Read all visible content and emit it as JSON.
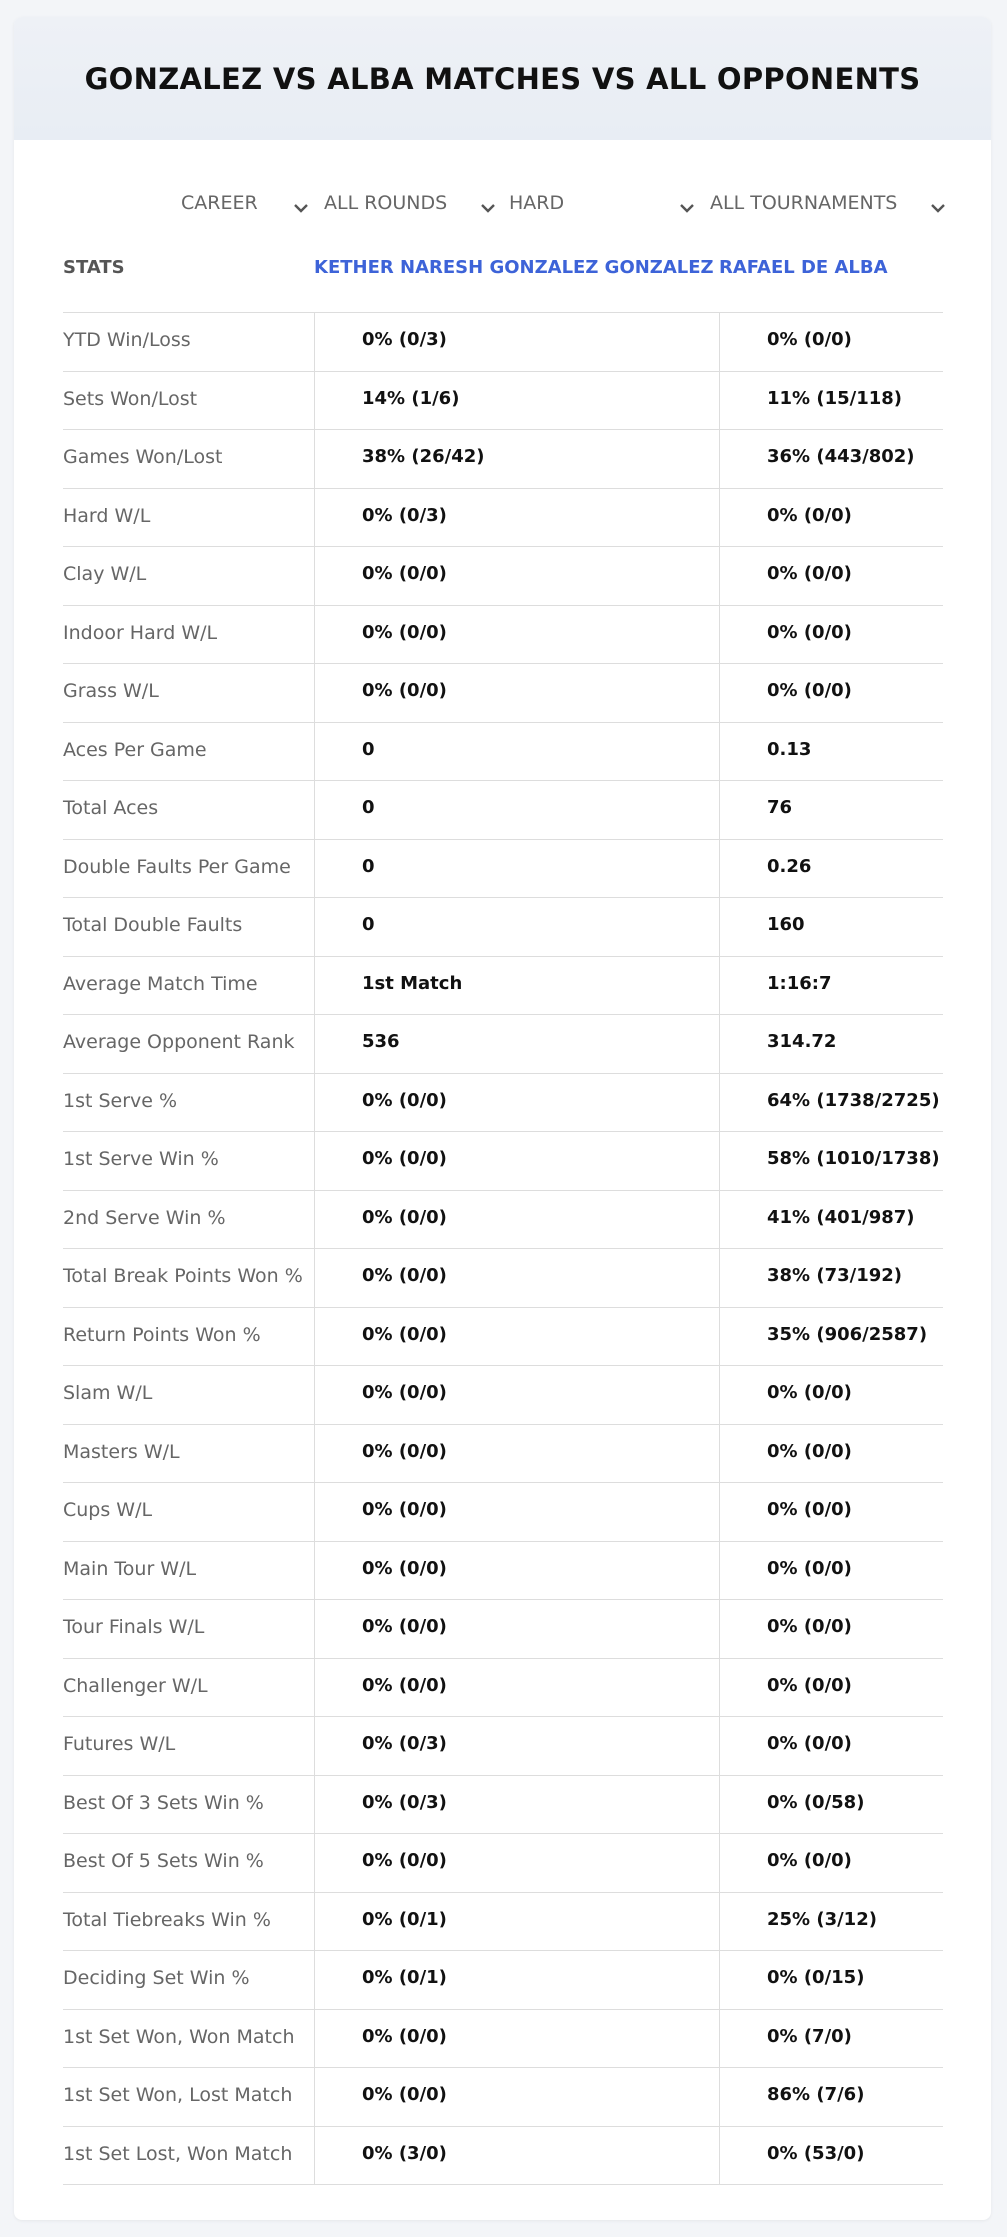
{
  "header": {
    "title": "GONZALEZ VS ALBA MATCHES VS ALL OPPONENTS"
  },
  "filters": [
    "CAREER",
    "ALL ROUNDS",
    "HARD",
    "ALL TOURNAMENTS"
  ],
  "table": {
    "columns": [
      "STATS",
      "KETHER NARESH GONZALEZ GONZALEZ",
      "RAFAEL DE ALBA"
    ],
    "rows": [
      [
        "YTD Win/Loss",
        "0% (0/3)",
        "0% (0/0)"
      ],
      [
        "Sets Won/Lost",
        "14% (1/6)",
        "11% (15/118)"
      ],
      [
        "Games Won/Lost",
        "38% (26/42)",
        "36% (443/802)"
      ],
      [
        "Hard W/L",
        "0% (0/3)",
        "0% (0/0)"
      ],
      [
        "Clay W/L",
        "0% (0/0)",
        "0% (0/0)"
      ],
      [
        "Indoor Hard W/L",
        "0% (0/0)",
        "0% (0/0)"
      ],
      [
        "Grass W/L",
        "0% (0/0)",
        "0% (0/0)"
      ],
      [
        "Aces Per Game",
        "0",
        "0.13"
      ],
      [
        "Total Aces",
        "0",
        "76"
      ],
      [
        "Double Faults Per Game",
        "0",
        "0.26"
      ],
      [
        "Total Double Faults",
        "0",
        "160"
      ],
      [
        "Average Match Time",
        "1st Match",
        "1:16:7"
      ],
      [
        "Average Opponent Rank",
        "536",
        "314.72"
      ],
      [
        "1st Serve %",
        "0% (0/0)",
        "64% (1738/2725)"
      ],
      [
        "1st Serve Win %",
        "0% (0/0)",
        "58% (1010/1738)"
      ],
      [
        "2nd Serve Win %",
        "0% (0/0)",
        "41% (401/987)"
      ],
      [
        "Total Break Points Won %",
        "0% (0/0)",
        "38% (73/192)"
      ],
      [
        "Return Points Won %",
        "0% (0/0)",
        "35% (906/2587)"
      ],
      [
        "Slam W/L",
        "0% (0/0)",
        "0% (0/0)"
      ],
      [
        "Masters W/L",
        "0% (0/0)",
        "0% (0/0)"
      ],
      [
        "Cups W/L",
        "0% (0/0)",
        "0% (0/0)"
      ],
      [
        "Main Tour W/L",
        "0% (0/0)",
        "0% (0/0)"
      ],
      [
        "Tour Finals W/L",
        "0% (0/0)",
        "0% (0/0)"
      ],
      [
        "Challenger W/L",
        "0% (0/0)",
        "0% (0/0)"
      ],
      [
        "Futures W/L",
        "0% (0/3)",
        "0% (0/0)"
      ],
      [
        "Best Of 3 Sets Win %",
        "0% (0/3)",
        "0% (0/58)"
      ],
      [
        "Best Of 5 Sets Win %",
        "0% (0/0)",
        "0% (0/0)"
      ],
      [
        "Total Tiebreaks Win %",
        "0% (0/1)",
        "25% (3/12)"
      ],
      [
        "Deciding Set Win %",
        "0% (0/1)",
        "0% (0/15)"
      ],
      [
        "1st Set Won, Won Match",
        "0% (0/0)",
        "0% (7/0)"
      ],
      [
        "1st Set Won, Lost Match",
        "0% (0/0)",
        "86% (7/6)"
      ],
      [
        "1st Set Lost, Won Match",
        "0% (3/0)",
        "0% (53/0)"
      ]
    ]
  }
}
